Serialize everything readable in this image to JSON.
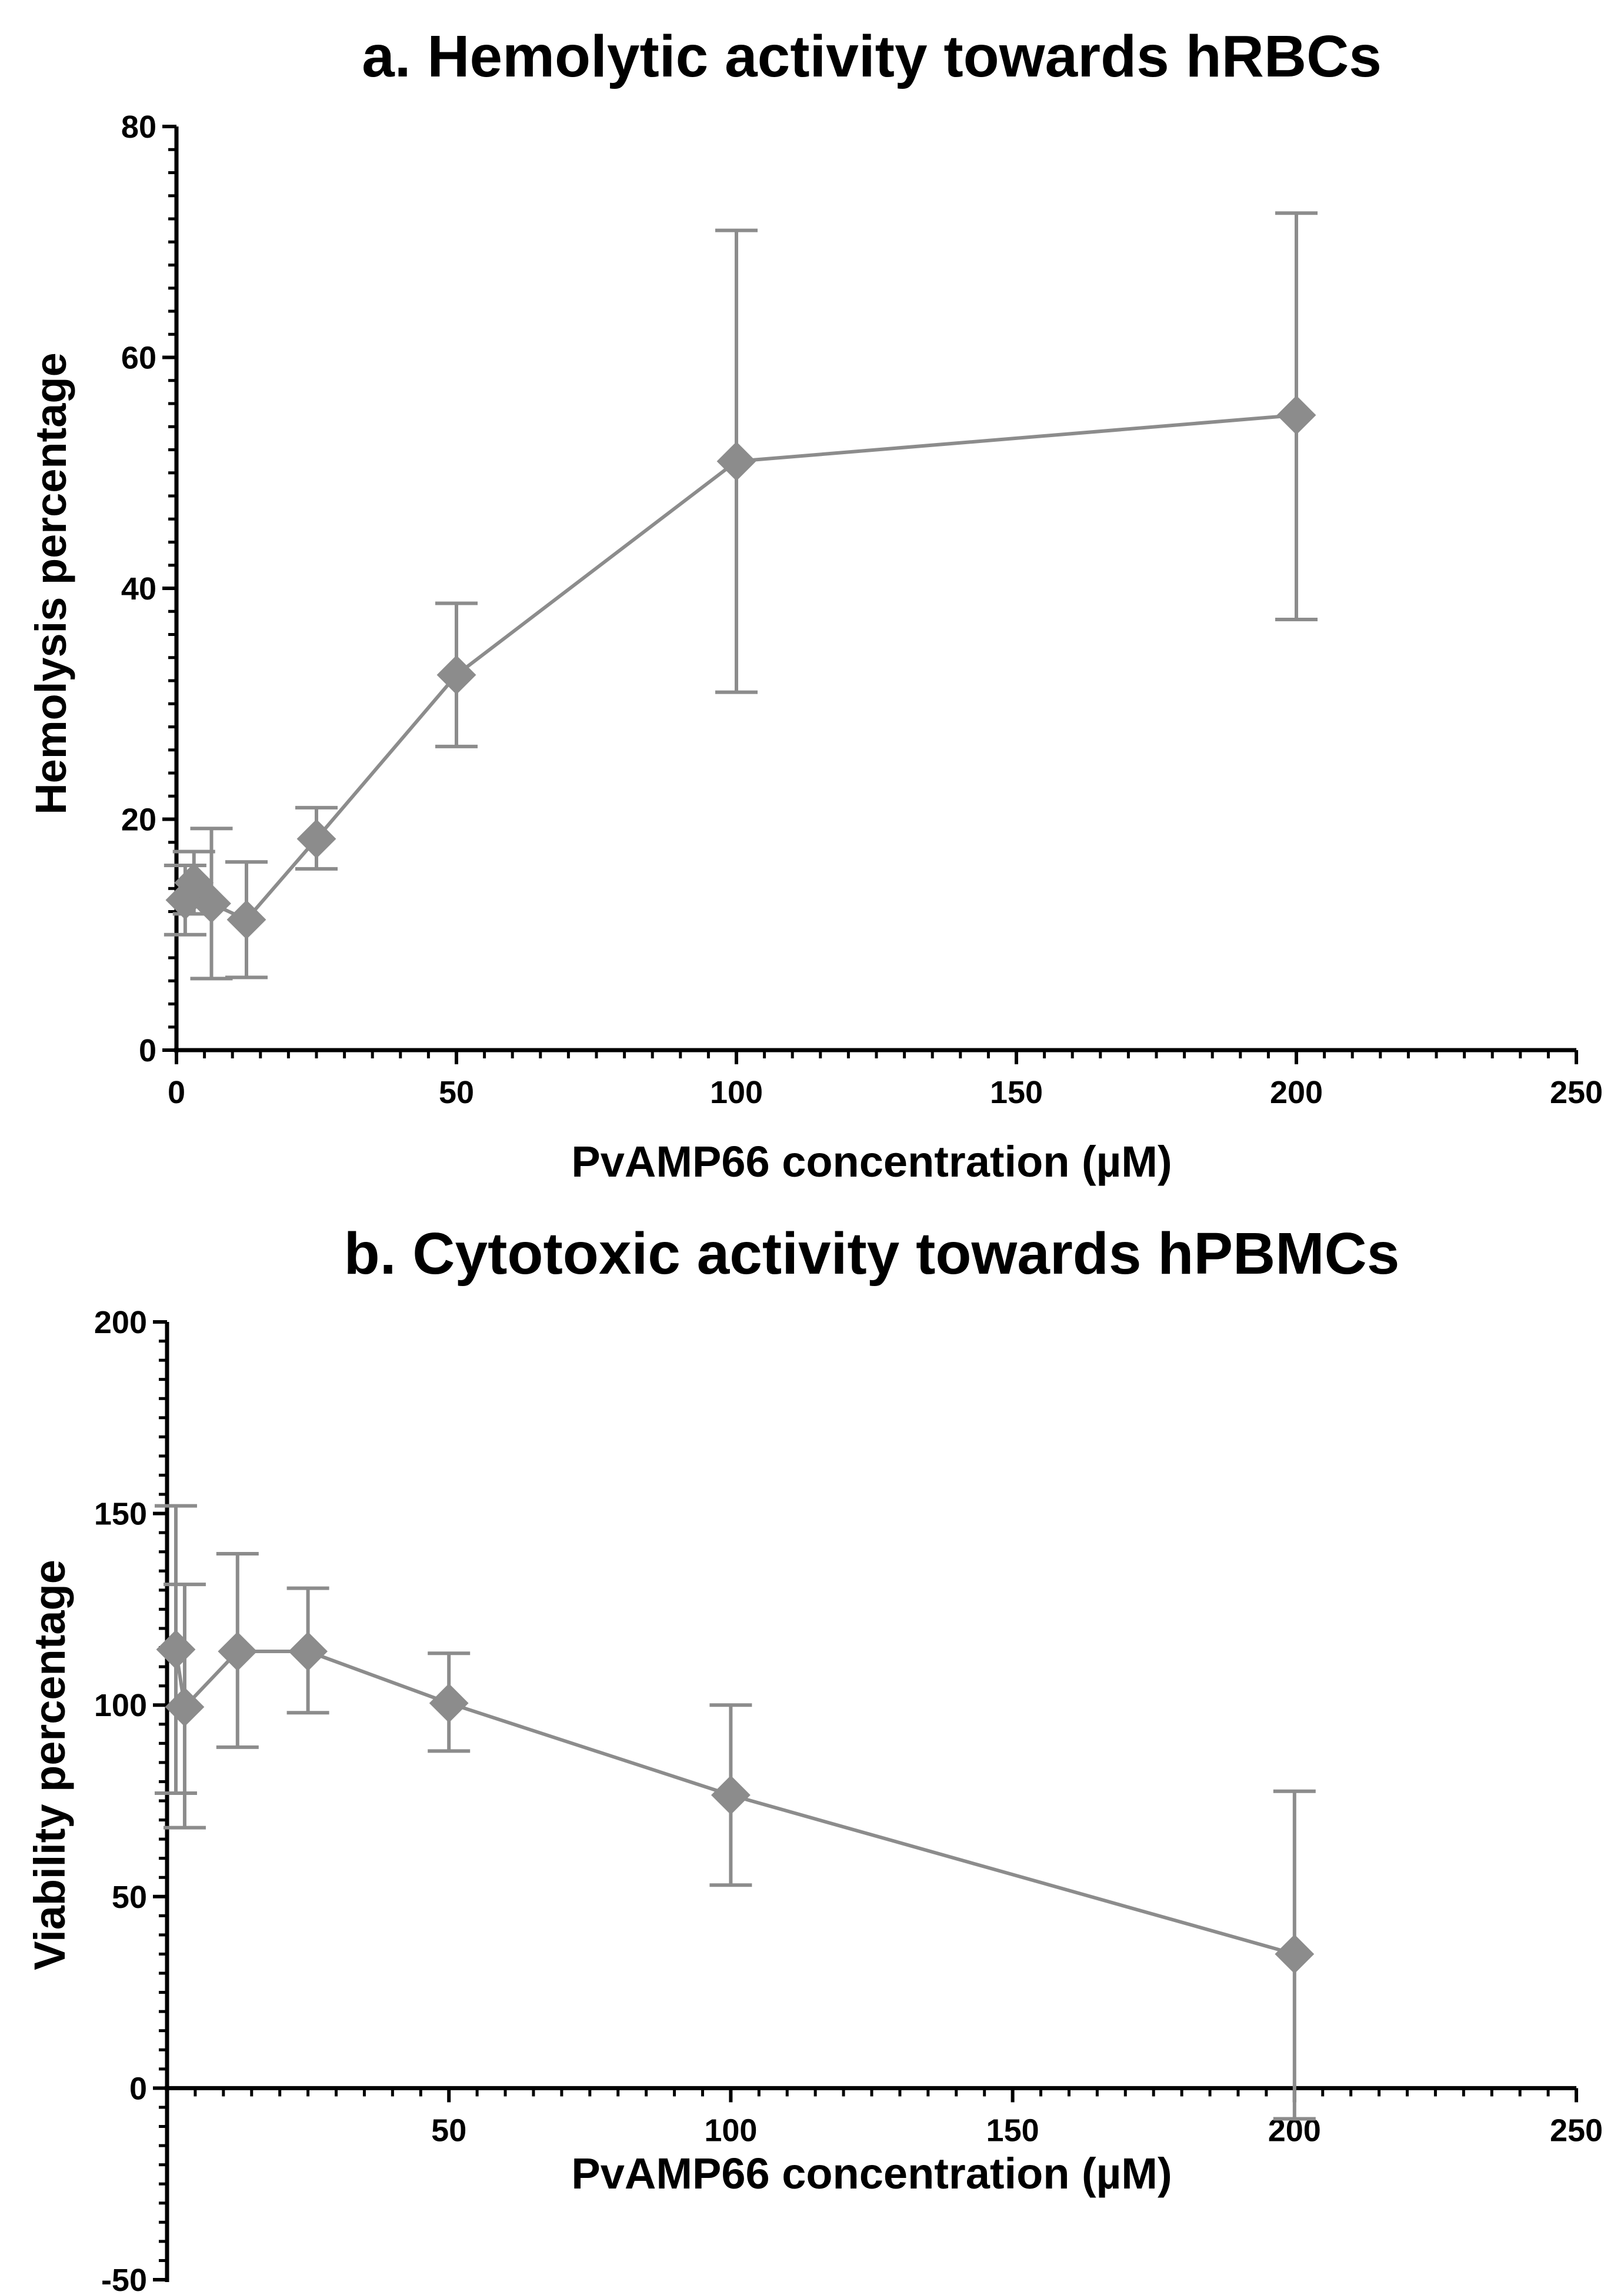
{
  "colors": {
    "series": "#8c8c8c",
    "axis": "#000000",
    "background": "#ffffff"
  },
  "chart_data": [
    {
      "id": "a",
      "type": "line",
      "title": "a. Hemolytic activity towards hRBCs",
      "xlabel": "PvAMP66 concentration (µM)",
      "ylabel": "Hemolysis percentage",
      "xlim": [
        0,
        250
      ],
      "ylim": [
        0,
        80
      ],
      "x_ticks": [
        0,
        50,
        100,
        150,
        200,
        250
      ],
      "x_tick_labels": [
        "0",
        "50",
        "100",
        "150",
        "200",
        "250"
      ],
      "y_ticks": [
        0,
        20,
        40,
        60,
        80
      ],
      "y_tick_labels": [
        "0",
        "20",
        "40",
        "60",
        "80"
      ],
      "x_minor_step": 5,
      "y_minor_step": 2,
      "marker": "diamond",
      "grid": false,
      "series": [
        {
          "name": "PvAMP66",
          "x": [
            1.5625,
            3.125,
            6.25,
            12.5,
            25,
            50,
            100,
            200
          ],
          "y": [
            13,
            14.5,
            12.7,
            11.3,
            18.3,
            32.5,
            51,
            55
          ],
          "err_low": [
            10,
            11.8,
            6.2,
            6.3,
            15.7,
            26.3,
            31,
            37.3
          ],
          "err_high": [
            16,
            17.2,
            19.2,
            16.3,
            21,
            38.7,
            71,
            72.5
          ]
        }
      ]
    },
    {
      "id": "b",
      "type": "line",
      "title": "b. Cytotoxic activity towards hPBMCs",
      "xlabel": "PvAMP66 concentration (µM)",
      "ylabel": "Viability percentage",
      "xlim": [
        0,
        250
      ],
      "ylim": [
        -50,
        200
      ],
      "x_ticks": [
        50,
        100,
        150,
        200,
        250
      ],
      "x_tick_labels": [
        "50",
        "100",
        "150",
        "200",
        "250"
      ],
      "y_ticks": [
        -50,
        0,
        50,
        100,
        150,
        200
      ],
      "y_tick_labels": [
        "-50",
        "0",
        "50",
        "100",
        "150",
        "200"
      ],
      "x_minor_step": 5,
      "y_minor_step": 5,
      "x_axis_at_y": 0,
      "marker": "diamond",
      "grid": false,
      "series": [
        {
          "name": "PvAMP66",
          "x": [
            1.5625,
            3.125,
            12.5,
            25,
            50,
            100,
            200
          ],
          "y": [
            114.5,
            99.5,
            114,
            114,
            100.5,
            76.5,
            35
          ],
          "err_low": [
            77,
            68,
            89,
            98,
            88,
            53,
            -8
          ],
          "err_high": [
            152,
            131.5,
            139.5,
            130.5,
            113.5,
            100,
            77.5
          ]
        }
      ]
    }
  ]
}
